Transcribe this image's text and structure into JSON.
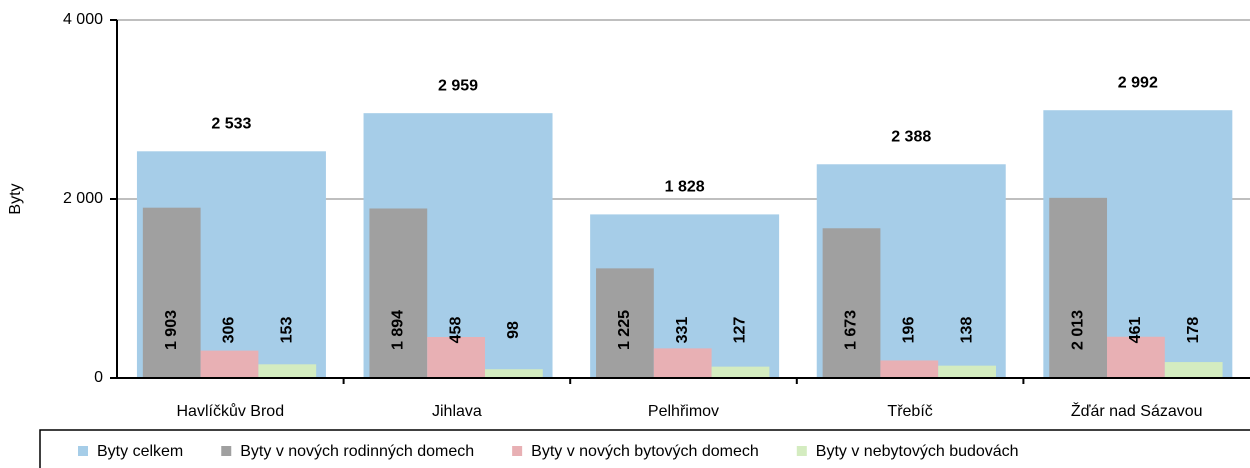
{
  "chart_data": {
    "type": "bar",
    "y_label": "Byty",
    "categories": [
      "Havlíčkův Brod",
      "Jihlava",
      "Pelhřimov",
      "Třebíč",
      "Žďár nad Sázavou"
    ],
    "series": [
      {
        "name": "Byty celkem",
        "color": "#a6cde8",
        "values": [
          2533,
          2959,
          1828,
          2388,
          2992
        ],
        "value_labels": [
          "2 533",
          "2 959",
          "1 828",
          "2 388",
          "2 992"
        ]
      },
      {
        "name": "Byty v nových rodinných domech",
        "color": "#a0a0a0",
        "values": [
          1903,
          1894,
          1225,
          1673,
          2013
        ],
        "value_labels": [
          "1 903",
          "1 894",
          "1 225",
          "1 673",
          "2 013"
        ]
      },
      {
        "name": "Byty v nových bytových domech",
        "color": "#e8b0b4",
        "values": [
          306,
          458,
          331,
          196,
          461
        ]
      },
      {
        "name": "Byty v nebytových budovách",
        "color": "#d4ecc0",
        "values": [
          153,
          98,
          127,
          138,
          178
        ]
      }
    ],
    "ylim": [
      0,
      4000
    ],
    "yticks": [
      0,
      {
        "value": 2000,
        "label": "2 000"
      },
      {
        "value": 4000,
        "label": "4 000"
      }
    ],
    "grid": true,
    "legend": "bottom"
  }
}
